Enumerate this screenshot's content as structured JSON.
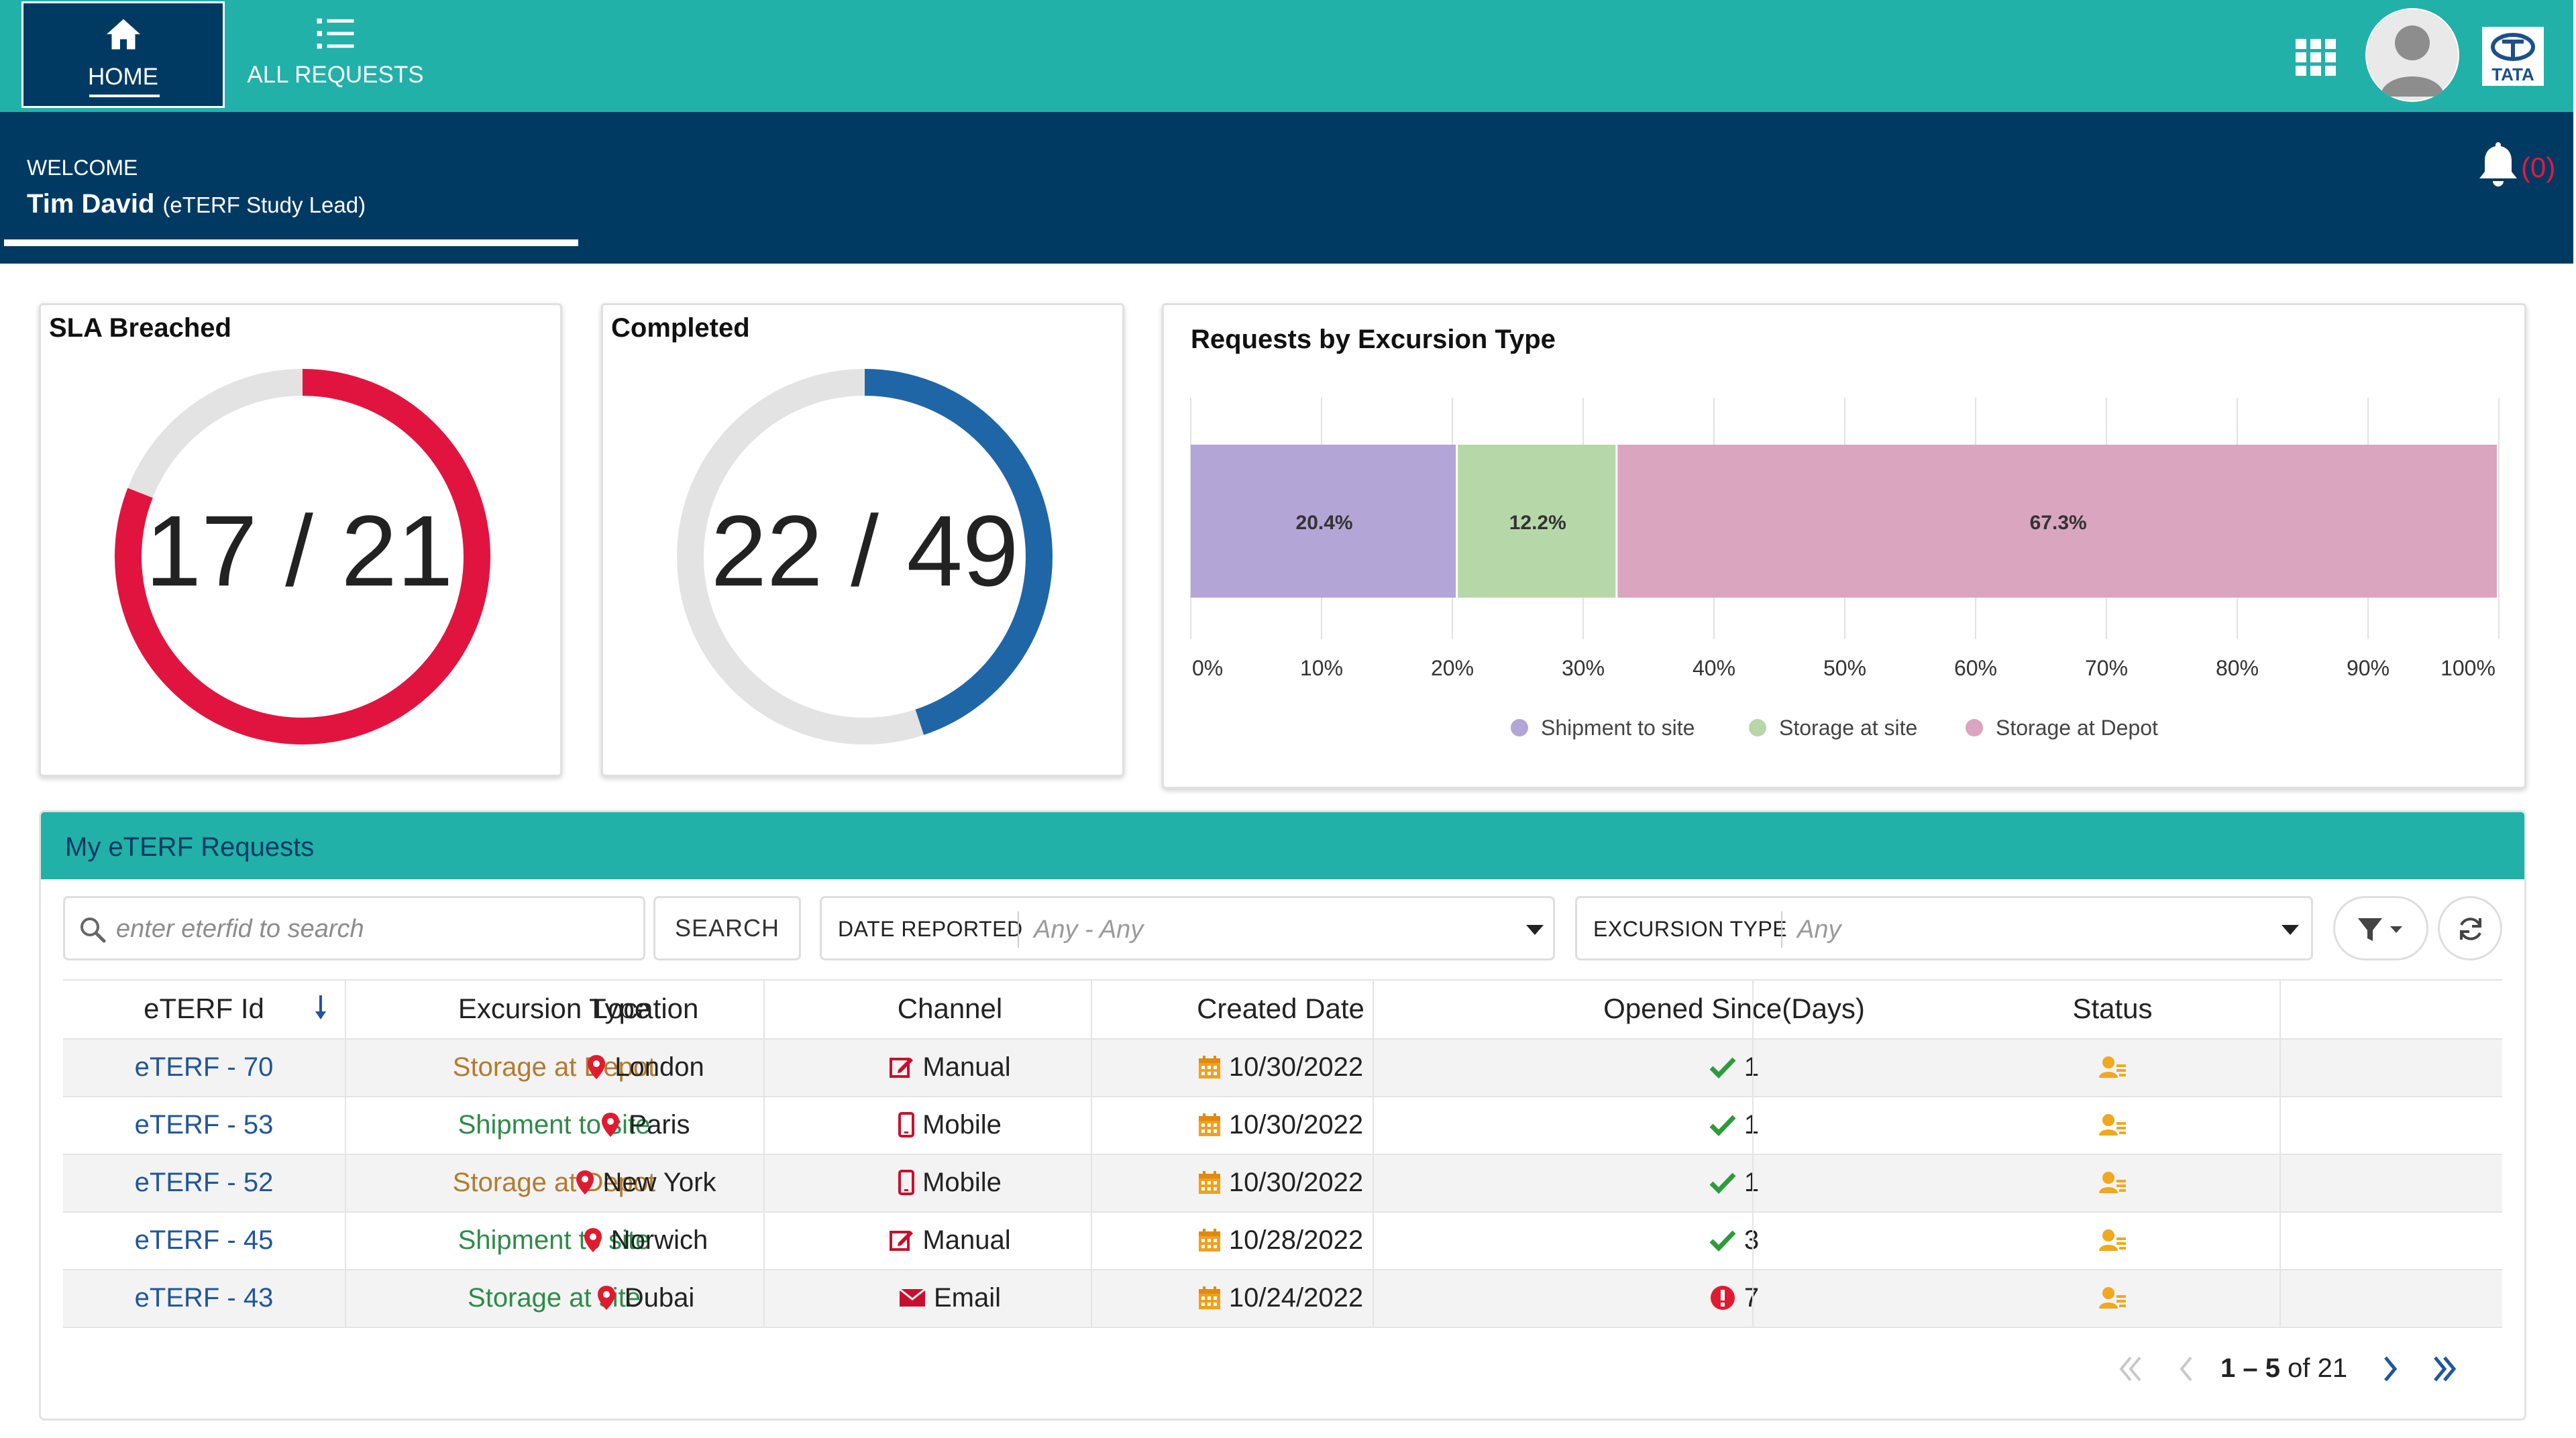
{
  "nav": {
    "home_label": "HOME",
    "all_requests_label": "ALL REQUESTS",
    "apps_icon": "grid-icon",
    "avatar_icon": "user-avatar-icon",
    "logo_text": "TATA",
    "accent": "#21b1a9",
    "dark": "#003a63"
  },
  "welcome": {
    "greeting": "WELCOME",
    "user_name": "Tim David",
    "role": "(eTERF Study Lead)",
    "notification_count": "(0)"
  },
  "kpis": {
    "sla": {
      "title": "SLA Breached",
      "value": "17 / 21",
      "done": 17,
      "total": 21,
      "color": "#e1143f"
    },
    "completed": {
      "title": "Completed",
      "value": "22 / 49",
      "done": 22,
      "total": 49,
      "color": "#1f66a6"
    }
  },
  "chart_data": {
    "type": "bar",
    "stacked": true,
    "orientation": "horizontal",
    "title": "Requests by Excursion Type",
    "categories": [
      ""
    ],
    "series": [
      {
        "name": "Shipment to site",
        "values": [
          20.4
        ],
        "label": "20.4%",
        "color": "#b3a6d6"
      },
      {
        "name": "Storage at site",
        "values": [
          12.2
        ],
        "label": "12.2%",
        "color": "#b6d8a9"
      },
      {
        "name": "Storage at Depot",
        "values": [
          67.3
        ],
        "label": "67.3%",
        "color": "#d9a5bf"
      }
    ],
    "xlim": [
      0,
      100
    ],
    "xticks": [
      "0%",
      "10%",
      "20%",
      "30%",
      "40%",
      "50%",
      "60%",
      "70%",
      "80%",
      "90%",
      "100%"
    ],
    "grid": true,
    "legend": "bottom"
  },
  "requests": {
    "title": "My eTERF Requests",
    "search_placeholder": "enter eterfid to search",
    "search_button": "SEARCH",
    "date_filter_label": "DATE REPORTED",
    "date_filter_value": "Any - Any",
    "type_filter_label": "EXCURSION TYPE",
    "type_filter_value": "Any",
    "columns": [
      "eTERF Id",
      "Excursion Type",
      "Location",
      "Channel",
      "Created Date",
      "Opened Since(Days)",
      "Status"
    ],
    "rows": [
      {
        "id": "eTERF - 70",
        "type": "Storage at Depot",
        "type_color": "orange",
        "location": "London",
        "channel": "Manual",
        "channel_icon": "edit-icon",
        "created": "10/30/2022",
        "days": "1",
        "days_icon": "check-icon"
      },
      {
        "id": "eTERF - 53",
        "type": "Shipment to site",
        "type_color": "green",
        "location": "Paris",
        "channel": "Mobile",
        "channel_icon": "mobile-icon",
        "created": "10/30/2022",
        "days": "1",
        "days_icon": "check-icon"
      },
      {
        "id": "eTERF - 52",
        "type": "Storage at Depot",
        "type_color": "orange",
        "location": "New York",
        "channel": "Mobile",
        "channel_icon": "mobile-icon",
        "created": "10/30/2022",
        "days": "1",
        "days_icon": "check-icon"
      },
      {
        "id": "eTERF - 45",
        "type": "Shipment to site",
        "type_color": "green",
        "location": "Norwich",
        "channel": "Manual",
        "channel_icon": "edit-icon",
        "created": "10/28/2022",
        "days": "3",
        "days_icon": "check-icon"
      },
      {
        "id": "eTERF - 43",
        "type": "Storage at site",
        "type_color": "green",
        "location": "Dubai",
        "channel": "Email",
        "channel_icon": "envelope-icon",
        "created": "10/24/2022",
        "days": "7",
        "days_icon": "alert-icon"
      }
    ],
    "pager_range": "1 – 5",
    "pager_of": "of 21"
  }
}
